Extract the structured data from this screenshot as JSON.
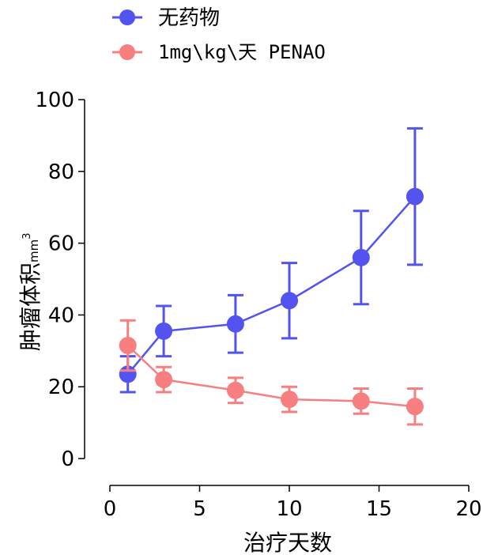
{
  "chart_data": {
    "type": "line",
    "title": "",
    "xlabel": "治疗天数",
    "ylabel": "肿瘤体积",
    "ylabel_unit": "mm",
    "ylabel_unit_sup": "3",
    "xlim": [
      0,
      20
    ],
    "ylim": [
      0,
      100
    ],
    "xticks": [
      0,
      5,
      10,
      15,
      20
    ],
    "yticks": [
      0,
      20,
      40,
      60,
      80,
      100
    ],
    "grid": false,
    "legend_position": "top-left",
    "series": [
      {
        "name": "无药物",
        "color": "#5353f0",
        "x": [
          1,
          3,
          7,
          10,
          14,
          17
        ],
        "y": [
          23.5,
          35.5,
          37.5,
          44,
          56,
          73
        ],
        "err": [
          5,
          7,
          8,
          10.5,
          13,
          19
        ]
      },
      {
        "name": "1mg\\kg\\天 PENAO",
        "color": "#f77f7f",
        "x": [
          1,
          3,
          7,
          10,
          14,
          17
        ],
        "y": [
          31.5,
          22,
          19,
          16.5,
          16,
          14.5
        ],
        "err": [
          7,
          3.5,
          3.5,
          3.5,
          3.5,
          5
        ]
      }
    ]
  }
}
